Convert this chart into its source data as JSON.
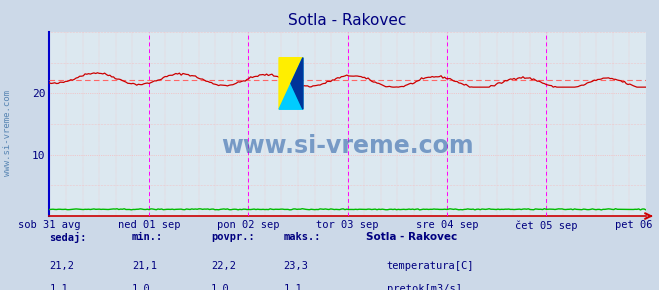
{
  "title": "Sotla - Rakovec",
  "title_color": "#000080",
  "background_color": "#ccd9e8",
  "plot_bg_color": "#dce8f0",
  "x_labels": [
    "sob 31 avg",
    "ned 01 sep",
    "pon 02 sep",
    "tor 03 sep",
    "sre 04 sep",
    "čet 05 sep",
    "pet 06 sep"
  ],
  "x_ticks_norm": [
    0.0,
    0.1667,
    0.3333,
    0.5,
    0.6667,
    0.8333,
    1.0
  ],
  "y_min": 0,
  "y_max": 30,
  "y_ticks": [
    10,
    20
  ],
  "avg_line": 22.2,
  "avg_line_color": "#ff6666",
  "temp_color": "#cc0000",
  "flow_color": "#00bb00",
  "vline_color": "#ff00ff",
  "grid_color": "#ffaaaa",
  "spine_left_color": "#0000cc",
  "spine_bottom_color": "#cc0000",
  "watermark_text": "www.si-vreme.com",
  "watermark_color": "#3366aa",
  "legend_title": "Sotla - Rakovec",
  "legend_title_color": "#000080",
  "legend_items": [
    "temperatura[C]",
    "pretok[m3/s]"
  ],
  "legend_colors": [
    "#cc0000",
    "#00bb00"
  ],
  "stats_labels": [
    "sedaj:",
    "min.:",
    "povpr.:",
    "maks.:"
  ],
  "stats_color": "#000080",
  "stats_temp": [
    "21,2",
    "21,1",
    "22,2",
    "23,3"
  ],
  "stats_flow": [
    "1,1",
    "1,0",
    "1,0",
    "1,1"
  ],
  "n_points": 336,
  "temp_avg": 22.2,
  "flow_val": 1.1
}
